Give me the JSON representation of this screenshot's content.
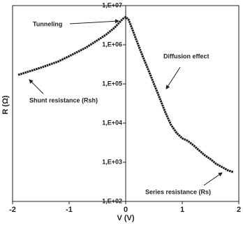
{
  "chart_data": {
    "type": "line",
    "x_label": "V (V)",
    "y_label": "R (Ω)",
    "x": [
      -1.9,
      -1.7,
      -1.5,
      -1.2,
      -1.0,
      -0.7,
      -0.5,
      -0.35,
      -0.2,
      -0.05,
      0,
      0.05,
      0.1,
      0.2,
      0.3,
      0.4,
      0.5,
      0.6,
      0.7,
      0.8,
      0.9,
      1.0,
      1.1,
      1.2,
      1.3,
      1.4,
      1.5,
      1.6,
      1.7,
      1.8,
      1.9
    ],
    "series": [
      {
        "color": "#1a1a1a",
        "values": [
          170000,
          210000,
          260000,
          370000,
          510000,
          850000,
          1300000,
          1800000,
          2700000,
          4600000,
          5100000,
          4400000,
          2900000,
          1200000,
          510000,
          230000,
          100000,
          44000,
          19000,
          9100,
          5600,
          4100,
          3500,
          2700,
          2000,
          1500,
          1200,
          910,
          760,
          630,
          560
        ]
      }
    ],
    "xlim": [
      -2,
      2
    ],
    "xticks": [
      -2,
      -1,
      0,
      1,
      2
    ],
    "ylim": [
      100,
      10000000
    ],
    "log_y": true,
    "yticks": [
      {
        "value": 100,
        "label": "1,E+02"
      },
      {
        "value": 1000,
        "label": "1,E+03"
      },
      {
        "value": 10000,
        "label": "1,E+04"
      },
      {
        "value": 100000,
        "label": "1,E+05"
      },
      {
        "value": 1000000,
        "label": "1,E+06"
      },
      {
        "value": 10000000,
        "label": "1,E+07"
      }
    ],
    "annotations": [
      {
        "text": "Tunneling"
      },
      {
        "text": "Diffusion effect"
      },
      {
        "text": "Shunt resistance (Rsh)"
      },
      {
        "text": "Series resistance (Rs)"
      }
    ]
  }
}
